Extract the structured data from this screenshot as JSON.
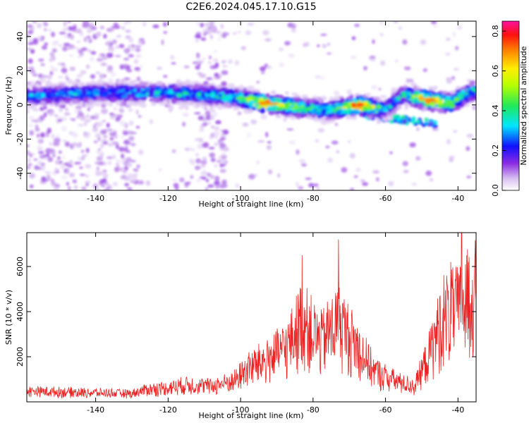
{
  "figure": {
    "title": "C2E6.2024.045.17.10.G15"
  },
  "colors": {
    "snr_line": "#ee2222",
    "frame": "#000000"
  },
  "chart_data": [
    {
      "type": "heatmap",
      "title": "C2E6.2024.045.17.10.G15",
      "xlabel": "Height of straight line (km)",
      "ylabel": "Frequency (Hz)",
      "xlim": [
        -159,
        -35
      ],
      "ylim": [
        -50,
        49
      ],
      "xticks": [
        -140,
        -120,
        -100,
        -80,
        -60,
        -40
      ],
      "yticks": [
        -40,
        -20,
        0,
        20,
        40
      ],
      "colorbar": {
        "label": "Normalized spectral amplitude",
        "range": [
          0,
          0.85
        ],
        "ticks": [
          0.0,
          0.2,
          0.4,
          0.6,
          0.8
        ],
        "colormap": "white-purple-blue-cyan-green-yellow-orange-red-magenta"
      },
      "ridge": [
        {
          "x": -159,
          "freq": 5,
          "amp": 0.3
        },
        {
          "x": -150,
          "freq": 6,
          "amp": 0.3
        },
        {
          "x": -140,
          "freq": 7,
          "amp": 0.3
        },
        {
          "x": -130,
          "freq": 7,
          "amp": 0.3
        },
        {
          "x": -120,
          "freq": 7,
          "amp": 0.35
        },
        {
          "x": -110,
          "freq": 6,
          "amp": 0.35
        },
        {
          "x": -100,
          "freq": 4,
          "amp": 0.4
        },
        {
          "x": -94,
          "freq": 1,
          "amp": 0.7
        },
        {
          "x": -89,
          "freq": 0,
          "amp": 0.6
        },
        {
          "x": -82,
          "freq": -2,
          "amp": 0.4
        },
        {
          "x": -75,
          "freq": -3,
          "amp": 0.35
        },
        {
          "x": -67,
          "freq": 0,
          "amp": 0.75
        },
        {
          "x": -60,
          "freq": -3,
          "amp": 0.3
        },
        {
          "x": -55,
          "freq": 6,
          "amp": 0.35
        },
        {
          "x": -48,
          "freq": 3,
          "amp": 0.7
        },
        {
          "x": -42,
          "freq": 1,
          "amp": 0.5
        },
        {
          "x": -36,
          "freq": 8,
          "amp": 0.35
        }
      ]
    },
    {
      "type": "line",
      "xlabel": "Height of straight line (km)",
      "ylabel": "SNR (10 * v/v)",
      "xlim": [
        -159,
        -35
      ],
      "ylim": [
        0,
        7500
      ],
      "xticks": [
        -140,
        -120,
        -100,
        -80,
        -60,
        -40
      ],
      "yticks": [
        2000,
        4000,
        6000
      ],
      "envelope": [
        {
          "x": -159,
          "y": 600
        },
        {
          "x": -150,
          "y": 550
        },
        {
          "x": -140,
          "y": 500
        },
        {
          "x": -130,
          "y": 450
        },
        {
          "x": -126,
          "y": 700
        },
        {
          "x": -120,
          "y": 800
        },
        {
          "x": -115,
          "y": 1000
        },
        {
          "x": -108,
          "y": 900
        },
        {
          "x": -102,
          "y": 1200
        },
        {
          "x": -98,
          "y": 2000
        },
        {
          "x": -92,
          "y": 2600
        },
        {
          "x": -87,
          "y": 3300
        },
        {
          "x": -83,
          "y": 5000
        },
        {
          "x": -78,
          "y": 3600
        },
        {
          "x": -73,
          "y": 4800
        },
        {
          "x": -68,
          "y": 3400
        },
        {
          "x": -63,
          "y": 1800
        },
        {
          "x": -57,
          "y": 1200
        },
        {
          "x": -52,
          "y": 900
        },
        {
          "x": -48,
          "y": 2800
        },
        {
          "x": -44,
          "y": 5200
        },
        {
          "x": -40,
          "y": 5500
        },
        {
          "x": -36,
          "y": 6500
        }
      ],
      "peaks": [
        {
          "x": -83,
          "y": 6500
        },
        {
          "x": -73,
          "y": 7200
        },
        {
          "x": -39,
          "y": 7500
        },
        {
          "x": -42,
          "y": 6200
        }
      ]
    }
  ]
}
